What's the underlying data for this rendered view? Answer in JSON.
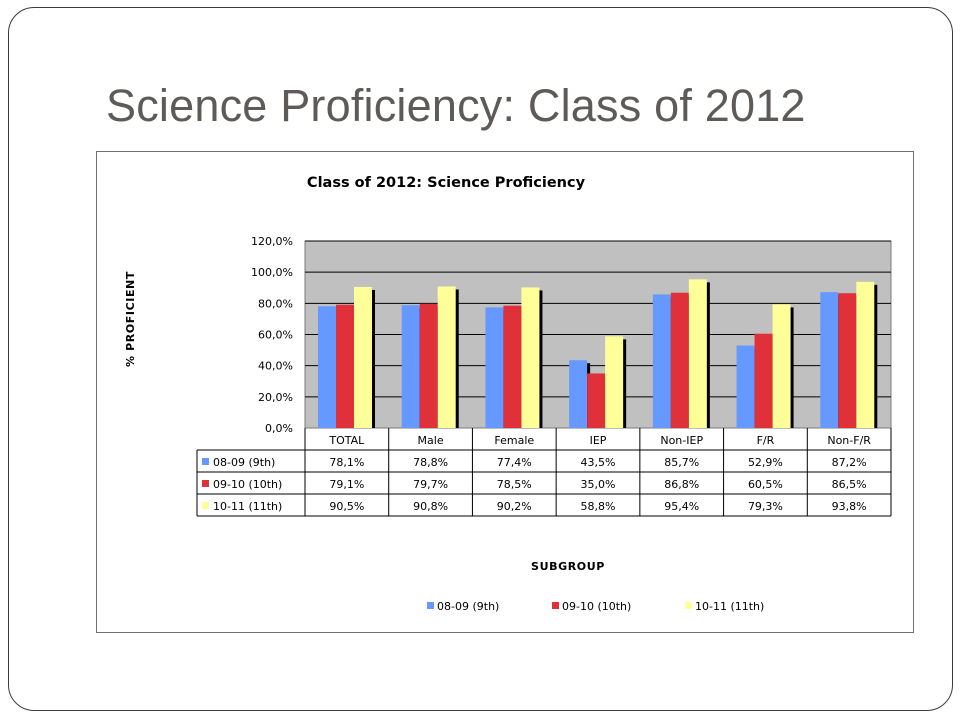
{
  "slide": {
    "title": "Science Proficiency:  Class of 2012"
  },
  "colors": {
    "series_1": "#6699ff",
    "series_2": "#e0303a",
    "series_3": "#ffff99",
    "plot_background": "#c0c0c0",
    "gridline": "#000000"
  },
  "chart_data": {
    "type": "bar",
    "title": "Class of 2012:  Science Proficiency",
    "xlabel": "SUBGROUP",
    "ylabel": "% PROFICIENT",
    "ylim": [
      0,
      120
    ],
    "yticks": [
      "0,0%",
      "20,0%",
      "40,0%",
      "60,0%",
      "80,0%",
      "100,0%",
      "120,0%"
    ],
    "grid": true,
    "legend": "bottom",
    "data_table": true,
    "categories": [
      "TOTAL",
      "Male",
      "Female",
      "IEP",
      "Non-IEP",
      "F/R",
      "Non-F/R"
    ],
    "series": [
      {
        "name": "08-09 (9th)",
        "values": [
          78.1,
          78.8,
          77.4,
          43.5,
          85.7,
          52.9,
          87.2
        ],
        "labels": [
          "78,1%",
          "78,8%",
          "77,4%",
          "43,5%",
          "85,7%",
          "52,9%",
          "87,2%"
        ]
      },
      {
        "name": "09-10 (10th)",
        "values": [
          79.1,
          79.7,
          78.5,
          35.0,
          86.8,
          60.5,
          86.5
        ],
        "labels": [
          "79,1%",
          "79,7%",
          "78,5%",
          "35,0%",
          "86,8%",
          "60,5%",
          "86,5%"
        ]
      },
      {
        "name": "10-11 (11th)",
        "values": [
          90.5,
          90.8,
          90.2,
          58.8,
          95.4,
          79.3,
          93.8
        ],
        "labels": [
          "90,5%",
          "90,8%",
          "90,2%",
          "58,8%",
          "95,4%",
          "79,3%",
          "93,8%"
        ]
      }
    ]
  }
}
